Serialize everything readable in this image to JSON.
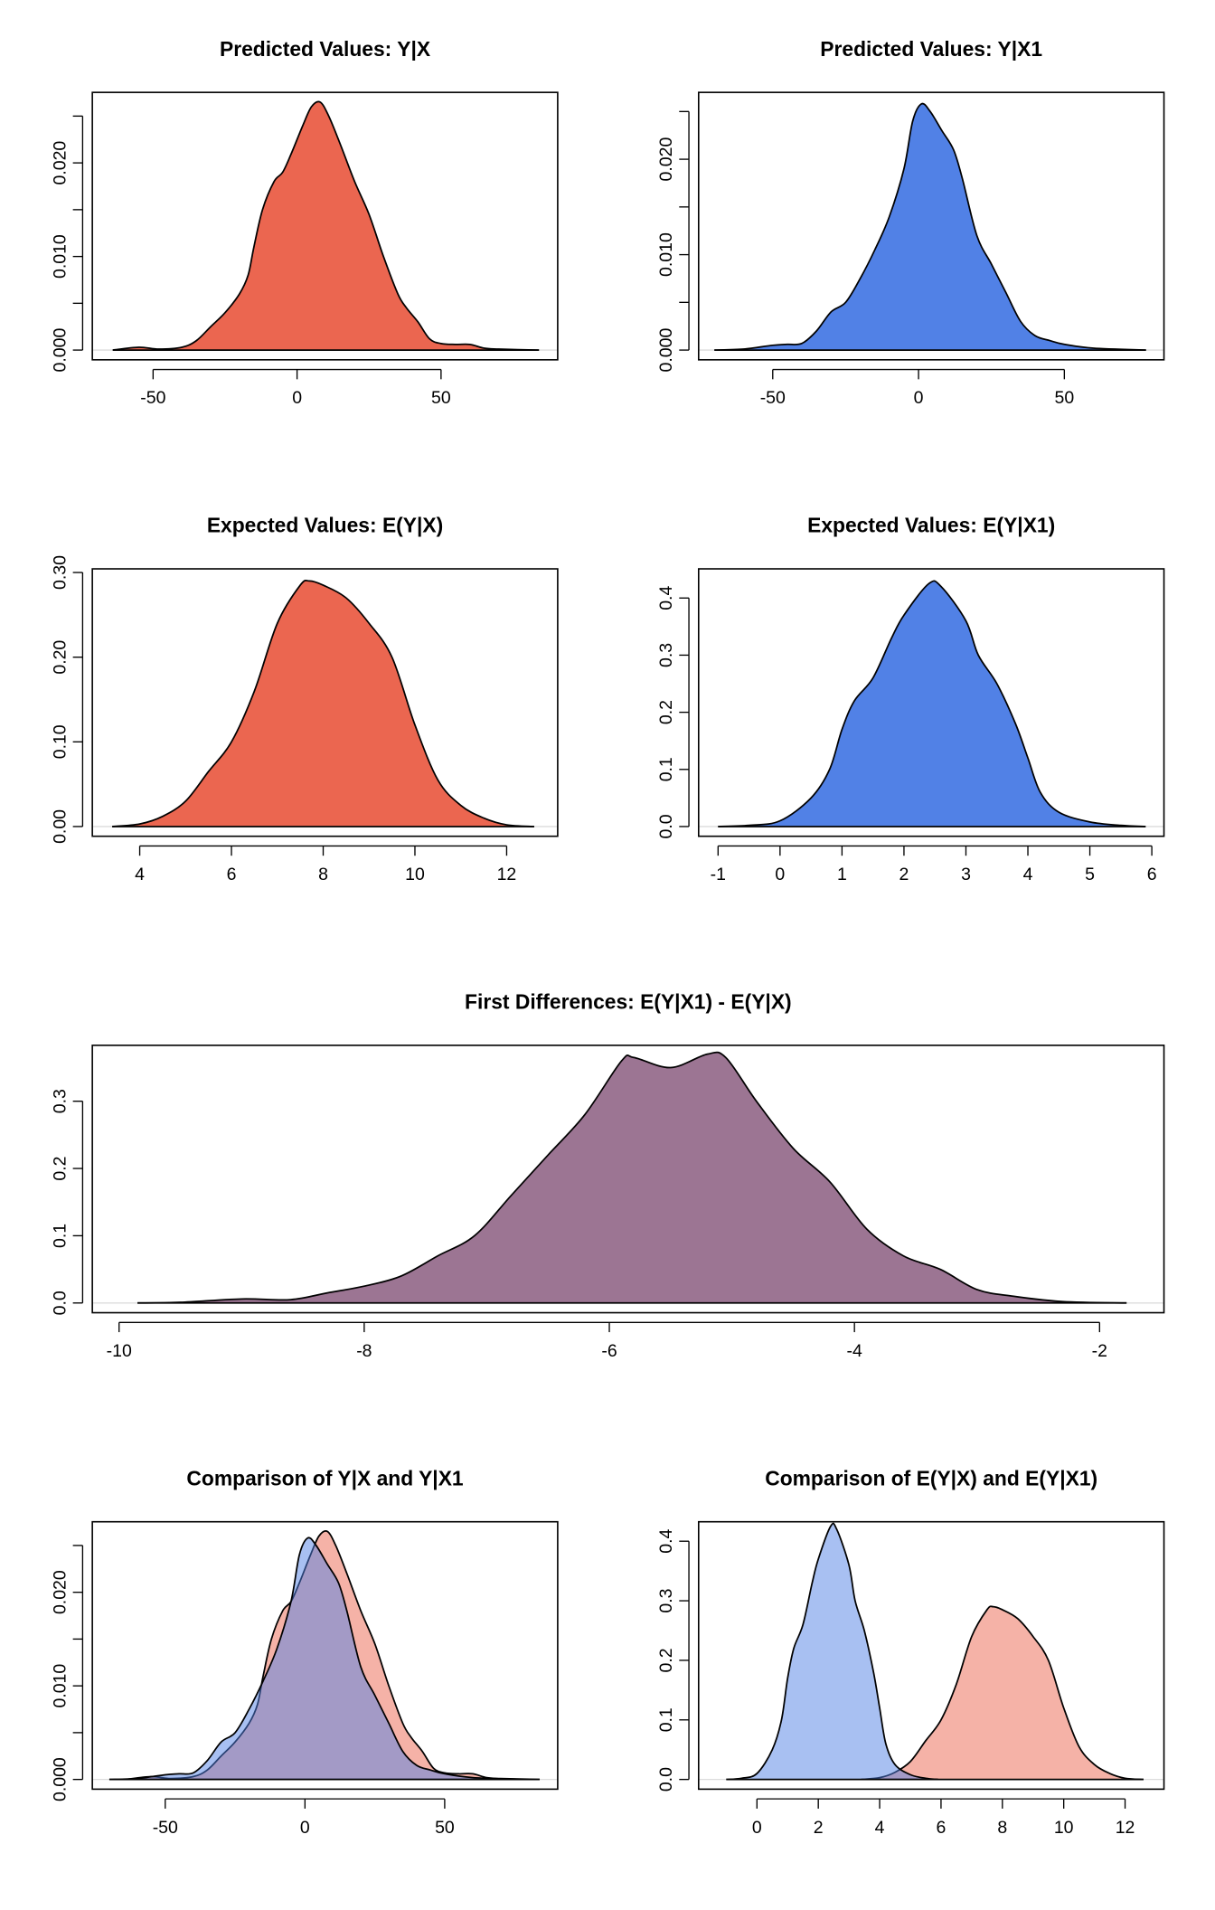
{
  "chart_data": [
    {
      "type": "area",
      "title": "Predicted Values: Y|X",
      "xticks": [
        -50,
        0,
        50
      ],
      "xtick_labels": [
        "-50",
        "0",
        "50"
      ],
      "yticks": [
        0,
        0.005,
        0.01,
        0.015,
        0.02,
        0.025
      ],
      "ytick_labels": [
        "0.000",
        "",
        "0.010",
        "",
        "0.020",
        ""
      ],
      "series": [
        {
          "color": "#EB6650",
          "opacity": 1,
          "x": [
            -64,
            -55,
            -48,
            -40,
            -35,
            -30,
            -25,
            -20,
            -17,
            -15,
            -12,
            -8,
            -5,
            -2,
            2,
            5,
            8,
            11,
            15,
            20,
            25,
            30,
            35,
            38,
            42,
            46,
            50,
            55,
            60,
            65,
            70,
            84
          ],
          "y": [
            0,
            0.0003,
            0.0001,
            0.0003,
            0.001,
            0.0025,
            0.004,
            0.006,
            0.008,
            0.011,
            0.015,
            0.018,
            0.019,
            0.021,
            0.024,
            0.026,
            0.0265,
            0.025,
            0.022,
            0.018,
            0.0145,
            0.01,
            0.006,
            0.0045,
            0.003,
            0.0012,
            0.0007,
            0.0006,
            0.0006,
            0.0002,
            0.0001,
            0
          ]
        }
      ]
    },
    {
      "type": "area",
      "title": "Predicted Values: Y|X1",
      "xticks": [
        -50,
        0,
        50
      ],
      "xtick_labels": [
        "-50",
        "0",
        "50"
      ],
      "yticks": [
        0,
        0.005,
        0.01,
        0.015,
        0.02,
        0.025
      ],
      "ytick_labels": [
        "0.000",
        "",
        "0.010",
        "",
        "0.020",
        ""
      ],
      "series": [
        {
          "color": "#5181E6",
          "opacity": 1,
          "x": [
            -70,
            -60,
            -50,
            -45,
            -40,
            -35,
            -30,
            -25,
            -20,
            -15,
            -10,
            -5,
            -2,
            1,
            4,
            8,
            12,
            15,
            20,
            25,
            30,
            35,
            40,
            45,
            50,
            60,
            78
          ],
          "y": [
            0,
            0.0001,
            0.0005,
            0.0006,
            0.0007,
            0.002,
            0.004,
            0.005,
            0.0075,
            0.0105,
            0.014,
            0.019,
            0.024,
            0.0258,
            0.025,
            0.023,
            0.021,
            0.018,
            0.012,
            0.009,
            0.006,
            0.003,
            0.0015,
            0.001,
            0.0006,
            0.0002,
            0
          ]
        }
      ]
    },
    {
      "type": "area",
      "title": "Expected Values: E(Y|X)",
      "xticks": [
        4,
        6,
        8,
        10,
        12
      ],
      "xtick_labels": [
        "4",
        "6",
        "8",
        "10",
        "12"
      ],
      "yticks": [
        0,
        0.1,
        0.2,
        0.3
      ],
      "ytick_labels": [
        "0.00",
        "0.10",
        "0.20",
        "0.30"
      ],
      "series": [
        {
          "color": "#EB6650",
          "opacity": 1,
          "x": [
            3.4,
            4,
            4.5,
            5,
            5.5,
            6,
            6.5,
            7,
            7.5,
            7.7,
            8,
            8.5,
            9,
            9.5,
            10,
            10.5,
            11,
            11.5,
            12,
            12.6
          ],
          "y": [
            0,
            0.003,
            0.012,
            0.03,
            0.065,
            0.1,
            0.16,
            0.24,
            0.285,
            0.29,
            0.285,
            0.27,
            0.24,
            0.2,
            0.12,
            0.055,
            0.025,
            0.01,
            0.002,
            0
          ]
        }
      ]
    },
    {
      "type": "area",
      "title": "Expected Values: E(Y|X1)",
      "xticks": [
        -1,
        0,
        1,
        2,
        3,
        4,
        5,
        6
      ],
      "xtick_labels": [
        "-1",
        "0",
        "1",
        "2",
        "3",
        "4",
        "5",
        "6"
      ],
      "yticks": [
        0,
        0.1,
        0.2,
        0.3,
        0.4
      ],
      "ytick_labels": [
        "0.0",
        "0.1",
        "0.2",
        "0.3",
        "0.4"
      ],
      "series": [
        {
          "color": "#5181E6",
          "opacity": 1,
          "x": [
            -1,
            -0.5,
            0,
            0.5,
            0.8,
            1,
            1.2,
            1.5,
            1.8,
            2,
            2.4,
            2.6,
            3,
            3.2,
            3.5,
            3.8,
            4,
            4.2,
            4.5,
            5,
            5.5,
            5.9
          ],
          "y": [
            0,
            0.002,
            0.01,
            0.05,
            0.1,
            0.17,
            0.22,
            0.26,
            0.33,
            0.37,
            0.425,
            0.42,
            0.36,
            0.3,
            0.25,
            0.18,
            0.12,
            0.06,
            0.025,
            0.008,
            0.002,
            0
          ]
        }
      ]
    },
    {
      "type": "area",
      "title": "First Differences: E(Y|X1) - E(Y|X)",
      "xticks": [
        -10,
        -8,
        -6,
        -4,
        -2
      ],
      "xtick_labels": [
        "-10",
        "-8",
        "-6",
        "-4",
        "-2"
      ],
      "yticks": [
        0,
        0.1,
        0.2,
        0.3
      ],
      "ytick_labels": [
        "0.0",
        "0.1",
        "0.2",
        "0.3"
      ],
      "series": [
        {
          "color": "#9C7593",
          "opacity": 1,
          "x": [
            -9.85,
            -9.5,
            -9,
            -8.6,
            -8.3,
            -8,
            -7.7,
            -7.4,
            -7.1,
            -6.8,
            -6.5,
            -6.2,
            -5.9,
            -5.8,
            -5.5,
            -5.2,
            -5.05,
            -4.8,
            -4.5,
            -4.2,
            -3.9,
            -3.6,
            -3.3,
            -3,
            -2.7,
            -2.3,
            -1.78
          ],
          "y": [
            0,
            0.001,
            0.006,
            0.005,
            0.015,
            0.025,
            0.04,
            0.07,
            0.1,
            0.16,
            0.22,
            0.28,
            0.36,
            0.365,
            0.35,
            0.37,
            0.365,
            0.3,
            0.23,
            0.18,
            0.11,
            0.07,
            0.05,
            0.02,
            0.01,
            0.002,
            0
          ]
        }
      ]
    },
    {
      "type": "area",
      "title": "Comparison of Y|X and Y|X1",
      "xticks": [
        -50,
        0,
        50
      ],
      "xtick_labels": [
        "-50",
        "0",
        "50"
      ],
      "yticks": [
        0,
        0.005,
        0.01,
        0.015,
        0.02,
        0.025
      ],
      "ytick_labels": [
        "0.000",
        "",
        "0.010",
        "",
        "0.020",
        ""
      ],
      "series": [
        {
          "color": "#EB6650",
          "opacity": 0.5,
          "x": [
            -64,
            -55,
            -48,
            -40,
            -35,
            -30,
            -25,
            -20,
            -17,
            -15,
            -12,
            -8,
            -5,
            -2,
            2,
            5,
            8,
            11,
            15,
            20,
            25,
            30,
            35,
            38,
            42,
            46,
            50,
            55,
            60,
            65,
            70,
            84
          ],
          "y": [
            0,
            0.0003,
            0.0001,
            0.0003,
            0.001,
            0.0025,
            0.004,
            0.006,
            0.008,
            0.011,
            0.015,
            0.018,
            0.019,
            0.021,
            0.024,
            0.026,
            0.0265,
            0.025,
            0.022,
            0.018,
            0.0145,
            0.01,
            0.006,
            0.0045,
            0.003,
            0.0012,
            0.0007,
            0.0006,
            0.0006,
            0.0002,
            0.0001,
            0
          ]
        },
        {
          "color": "#5181E6",
          "opacity": 0.5,
          "x": [
            -70,
            -60,
            -50,
            -45,
            -40,
            -35,
            -30,
            -25,
            -20,
            -15,
            -10,
            -5,
            -2,
            1,
            4,
            8,
            12,
            15,
            20,
            25,
            30,
            35,
            40,
            45,
            50,
            60,
            78
          ],
          "y": [
            0,
            0.0001,
            0.0005,
            0.0006,
            0.0007,
            0.002,
            0.004,
            0.005,
            0.0075,
            0.0105,
            0.014,
            0.019,
            0.024,
            0.0258,
            0.025,
            0.023,
            0.021,
            0.018,
            0.012,
            0.009,
            0.006,
            0.003,
            0.0015,
            0.001,
            0.0006,
            0.0002,
            0
          ]
        }
      ]
    },
    {
      "type": "area",
      "title": "Comparison of E(Y|X) and E(Y|X1)",
      "xticks": [
        0,
        2,
        4,
        6,
        8,
        10,
        12
      ],
      "xtick_labels": [
        "0",
        "2",
        "4",
        "6",
        "8",
        "10",
        "12"
      ],
      "yticks": [
        0,
        0.1,
        0.2,
        0.3,
        0.4
      ],
      "ytick_labels": [
        "0.0",
        "0.1",
        "0.2",
        "0.3",
        "0.4"
      ],
      "series": [
        {
          "color": "#EB6650",
          "opacity": 0.5,
          "x": [
            3.4,
            4,
            4.5,
            5,
            5.5,
            6,
            6.5,
            7,
            7.5,
            7.7,
            8,
            8.5,
            9,
            9.5,
            10,
            10.5,
            11,
            11.5,
            12,
            12.6
          ],
          "y": [
            0,
            0.003,
            0.012,
            0.03,
            0.065,
            0.1,
            0.16,
            0.24,
            0.285,
            0.29,
            0.285,
            0.27,
            0.24,
            0.2,
            0.12,
            0.055,
            0.025,
            0.01,
            0.002,
            0
          ]
        },
        {
          "color": "#5181E6",
          "opacity": 0.5,
          "x": [
            -1,
            -0.5,
            0,
            0.5,
            0.8,
            1,
            1.2,
            1.5,
            1.8,
            2,
            2.4,
            2.6,
            3,
            3.2,
            3.5,
            3.8,
            4,
            4.2,
            4.5,
            5,
            5.5,
            5.9
          ],
          "y": [
            0,
            0.002,
            0.01,
            0.05,
            0.1,
            0.17,
            0.22,
            0.26,
            0.33,
            0.37,
            0.425,
            0.42,
            0.36,
            0.3,
            0.25,
            0.18,
            0.12,
            0.06,
            0.025,
            0.008,
            0.002,
            0
          ]
        }
      ]
    }
  ]
}
